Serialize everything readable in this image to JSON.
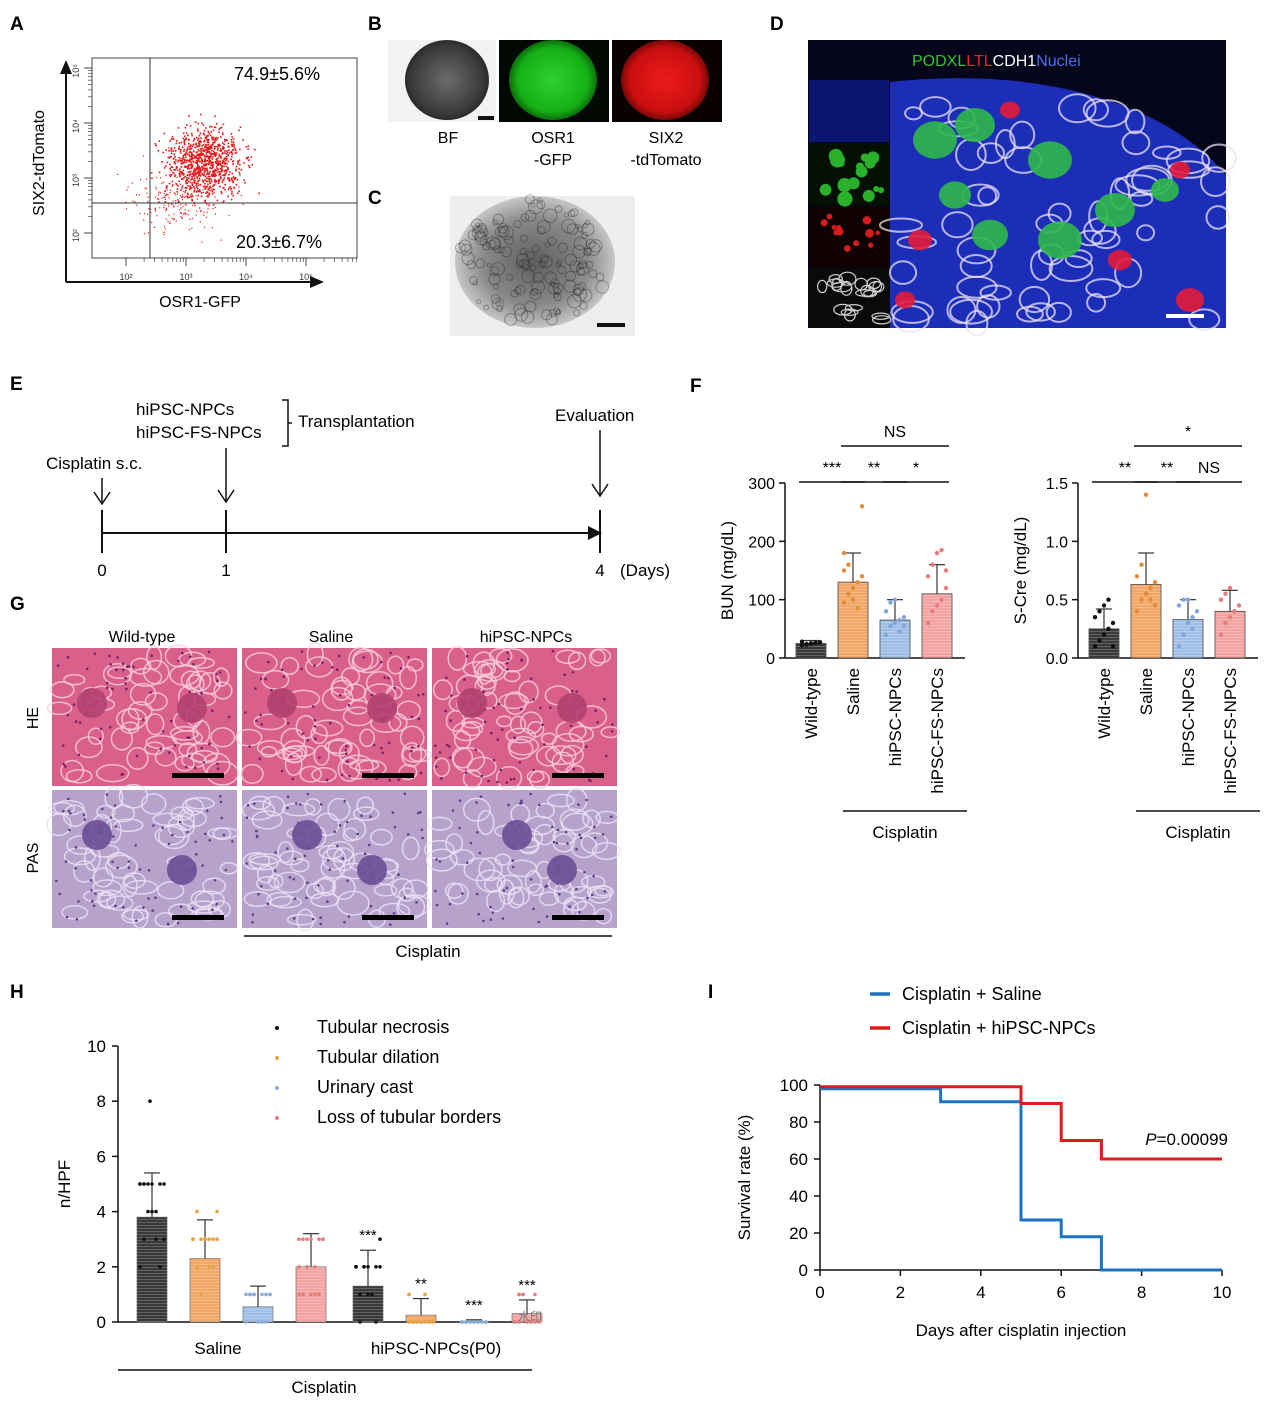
{
  "panel_labels": [
    "A",
    "B",
    "C",
    "D",
    "E",
    "F",
    "G",
    "H",
    "I"
  ],
  "colors": {
    "gfp": "#20b020",
    "tomato": "#e01818",
    "scatter": "#e81515",
    "black_bar": "#3a3a3a",
    "orange": "#f2a766",
    "blue": "#9fbfe6",
    "pink": "#f4a3a3",
    "he_pink": "#d9608a",
    "pas_purple": "#b7a2cc",
    "kaplan_saline": "#1b74c0",
    "kaplan_npc": "#e01b1b"
  },
  "panel_a": {
    "ylabel": "SIX2-tdTomato",
    "xlabel": "OSR1-GFP",
    "q_upper": "74.9±5.6%",
    "q_lower": "20.3±6.7%",
    "ticks_x": [
      "10²",
      "10³",
      "10⁴",
      "10⁵"
    ],
    "ticks_y": [
      "10²",
      "10³",
      "10⁴",
      "10⁵"
    ]
  },
  "panel_b": {
    "labels": [
      {
        "l1": "BF",
        "l2": ""
      },
      {
        "l1": "OSR1",
        "l2": "-GFP"
      },
      {
        "l1": "SIX2",
        "l2": "-tdTomato"
      }
    ]
  },
  "panel_d": {
    "legend": [
      {
        "text": "PODXL",
        "color": "#31c331"
      },
      {
        "text": "LTL",
        "color": "#ee2222"
      },
      {
        "text": "CDH1",
        "color": "#ffffff"
      },
      {
        "text": "Nuclei",
        "color": "#4f6ef2"
      }
    ]
  },
  "panel_e": {
    "cells": [
      "hiPSC-NPCs",
      "hiPSC-FS-NPCs"
    ],
    "transplantation": "Transplantation",
    "cisplatin": "Cisplatin s.c.",
    "evaluation": "Evaluation",
    "ticks": [
      "0",
      "1",
      "4"
    ],
    "unit": "(Days)"
  },
  "panel_g": {
    "columns": [
      "Wild-type",
      "Saline",
      "hiPSC-NPCs"
    ],
    "rows": [
      "HE",
      "PAS"
    ],
    "group_label": "Cisplatin"
  },
  "panel_f": {
    "group_label": "Cisplatin",
    "charts": [
      {
        "ylabel": "BUN (mg/dL)",
        "yticks": [
          "0",
          "100",
          "200",
          "300"
        ],
        "ylim": [
          0,
          300
        ],
        "categories": [
          "Wild-type",
          "Saline",
          "hiPSC-NPCs",
          "hiPSC-FS-NPCs"
        ],
        "values": [
          25,
          130,
          65,
          110
        ],
        "sd": [
          5,
          50,
          35,
          50
        ],
        "points": [
          [
            22,
            24,
            25,
            26,
            27,
            28,
            23,
            25,
            26,
            27
          ],
          [
            95,
            110,
            120,
            130,
            140,
            150,
            160,
            100,
            85,
            260,
            180
          ],
          [
            40,
            55,
            60,
            65,
            70,
            80,
            95,
            100,
            45,
            55
          ],
          [
            60,
            80,
            90,
            100,
            120,
            140,
            160,
            180,
            185,
            150
          ]
        ],
        "sig": [
          {
            "from": 0,
            "to": 1,
            "text": "***",
            "level": 0
          },
          {
            "from": 1,
            "to": 2,
            "text": "**",
            "level": 0
          },
          {
            "from": 2,
            "to": 3,
            "text": "*",
            "level": 0
          },
          {
            "from": 1,
            "to": 3,
            "text": "NS",
            "level": 1
          }
        ]
      },
      {
        "ylabel": "S-Cre (mg/dL)",
        "yticks": [
          "0.0",
          "0.5",
          "1.0",
          "1.5"
        ],
        "ylim": [
          0,
          1.5
        ],
        "categories": [
          "Wild-type",
          "Saline",
          "hiPSC-NPCs",
          "hiPSC-FS-NPCs"
        ],
        "values": [
          0.25,
          0.63,
          0.33,
          0.4
        ],
        "sd": [
          0.17,
          0.27,
          0.17,
          0.18
        ],
        "points": [
          [
            0.1,
            0.15,
            0.2,
            0.25,
            0.3,
            0.35,
            0.4,
            0.45,
            0.5,
            0.1
          ],
          [
            0.4,
            0.5,
            0.55,
            0.6,
            0.65,
            0.7,
            0.8,
            1.4,
            0.5,
            0.45
          ],
          [
            0.1,
            0.2,
            0.3,
            0.35,
            0.4,
            0.45,
            0.5,
            0.5,
            0.25
          ],
          [
            0.2,
            0.3,
            0.35,
            0.4,
            0.45,
            0.5,
            0.55,
            0.6,
            0.4
          ]
        ],
        "sig": [
          {
            "from": 0,
            "to": 1,
            "text": "**",
            "level": 0
          },
          {
            "from": 1,
            "to": 2,
            "text": "**",
            "level": 0
          },
          {
            "from": 2,
            "to": 3,
            "text": "NS",
            "level": 0
          },
          {
            "from": 1,
            "to": 3,
            "text": "*",
            "level": 1
          }
        ]
      }
    ]
  },
  "chart_data": [
    {
      "type": "scatter",
      "title": "",
      "xlabel": "OSR1-GFP",
      "ylabel": "SIX2-tdTomato",
      "xscale": "log",
      "yscale": "log",
      "annotations": [
        "74.9±5.6%",
        "20.3±6.7%"
      ]
    },
    {
      "type": "bar",
      "ylabel": "BUN (mg/dL)",
      "ylim": [
        0,
        300
      ],
      "categories": [
        "Wild-type",
        "Saline",
        "hiPSC-NPCs",
        "hiPSC-FS-NPCs"
      ],
      "values": [
        25,
        130,
        65,
        110
      ]
    },
    {
      "type": "bar",
      "ylabel": "S-Cre (mg/dL)",
      "ylim": [
        0,
        1.5
      ],
      "categories": [
        "Wild-type",
        "Saline",
        "hiPSC-NPCs",
        "hiPSC-FS-NPCs"
      ],
      "values": [
        0.25,
        0.63,
        0.33,
        0.4
      ]
    },
    {
      "type": "bar",
      "ylabel": "n/HPF",
      "ylim": [
        0,
        10
      ],
      "categories": [
        "Saline",
        "hiPSC-NPCs(P0)"
      ],
      "group_label": "Cisplatin",
      "series": [
        {
          "name": "Tubular necrosis",
          "values": [
            3.8,
            1.3
          ],
          "sd": [
            1.6,
            1.3
          ],
          "sig": [
            "",
            "***"
          ]
        },
        {
          "name": "Tubular dilation",
          "values": [
            2.3,
            0.25
          ],
          "sd": [
            1.4,
            0.6
          ],
          "sig": [
            "",
            "**"
          ]
        },
        {
          "name": "Urinary cast",
          "values": [
            0.55,
            0.03
          ],
          "sd": [
            0.75,
            0.05
          ],
          "sig": [
            "",
            "***"
          ]
        },
        {
          "name": "Loss of tubular borders",
          "values": [
            2.0,
            0.3
          ],
          "sd": [
            1.2,
            0.5
          ],
          "sig": [
            "",
            "***"
          ]
        }
      ],
      "yticks": [
        "0",
        "2",
        "4",
        "6",
        "8",
        "10"
      ],
      "watermark": "水印"
    },
    {
      "type": "line",
      "xlabel": "Days after cisplatin injection",
      "ylabel": "Survival rate (%)",
      "xlim": [
        0,
        10
      ],
      "ylim": [
        0,
        100
      ],
      "xticks": [
        "0",
        "2",
        "4",
        "6",
        "8",
        "10"
      ],
      "yticks": [
        "0",
        "20",
        "40",
        "60",
        "80",
        "100"
      ],
      "annotation": {
        "italic": "P",
        "text": "=0.00099"
      },
      "series": [
        {
          "name": "Cisplatin + Saline",
          "color": "#1b74c0",
          "x": [
            0,
            3,
            3,
            5,
            5,
            6,
            6,
            7,
            7,
            10
          ],
          "y": [
            98,
            98,
            91,
            91,
            27,
            27,
            18,
            18,
            0,
            0
          ]
        },
        {
          "name": "Cisplatin + hiPSC-NPCs",
          "color": "#e01b1b",
          "x": [
            0,
            5,
            5,
            6,
            6,
            7,
            7,
            10
          ],
          "y": [
            99,
            99,
            90,
            90,
            70,
            70,
            60,
            60
          ]
        }
      ]
    }
  ]
}
